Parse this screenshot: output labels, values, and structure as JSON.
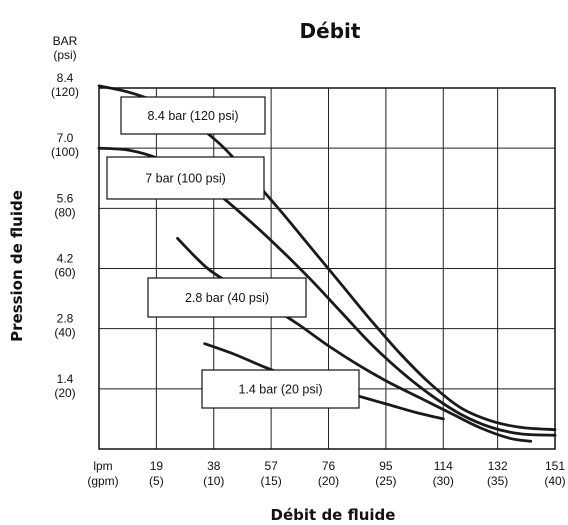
{
  "chart_data": {
    "type": "line",
    "title": "Débit",
    "xlabel": "Débit de fluide",
    "ylabel": "Pression de fluide",
    "y_unit_label": [
      "BAR",
      "(psi)"
    ],
    "x_unit_label": [
      "lpm",
      "(gpm)"
    ],
    "xlim": [
      0,
      151
    ],
    "ylim": [
      0,
      8.4
    ],
    "grid": true,
    "x_ticks": [
      {
        "value": 19,
        "label": "19",
        "sub": "(5)"
      },
      {
        "value": 38,
        "label": "38",
        "sub": "(10)"
      },
      {
        "value": 57,
        "label": "57",
        "sub": "(15)"
      },
      {
        "value": 76,
        "label": "76",
        "sub": "(20)"
      },
      {
        "value": 95,
        "label": "95",
        "sub": "(25)"
      },
      {
        "value": 114,
        "label": "114",
        "sub": "(30)"
      },
      {
        "value": 132,
        "label": "132",
        "sub": "(35)"
      },
      {
        "value": 151,
        "label": "151",
        "sub": "(40)"
      }
    ],
    "y_ticks": [
      {
        "value": 1.4,
        "label": "1.4",
        "sub": "(20)"
      },
      {
        "value": 2.8,
        "label": "2.8",
        "sub": "(40)"
      },
      {
        "value": 4.2,
        "label": "4.2",
        "sub": "(60)"
      },
      {
        "value": 5.6,
        "label": "5.6",
        "sub": "(80)"
      },
      {
        "value": 7.0,
        "label": "7.0",
        "sub": "(100)"
      },
      {
        "value": 8.4,
        "label": "8.4",
        "sub": "(120)"
      }
    ],
    "series": [
      {
        "name": "8.4 bar (120 psi)",
        "x": [
          0,
          10,
          20,
          30,
          40,
          50,
          60,
          70,
          80,
          90,
          100,
          110,
          120,
          130,
          140,
          151
        ],
        "y": [
          8.45,
          8.3,
          8.05,
          7.65,
          7.1,
          6.35,
          5.55,
          4.7,
          3.85,
          3.0,
          2.2,
          1.5,
          0.95,
          0.65,
          0.5,
          0.45
        ]
      },
      {
        "name": "7 bar (100 psi)",
        "x": [
          0,
          10,
          20,
          30,
          40,
          50,
          60,
          70,
          80,
          90,
          100,
          110,
          120,
          130,
          140,
          151
        ],
        "y": [
          7.0,
          6.95,
          6.75,
          6.4,
          5.9,
          5.3,
          4.65,
          3.95,
          3.2,
          2.45,
          1.8,
          1.25,
          0.8,
          0.5,
          0.35,
          0.32
        ]
      },
      {
        "name": "2.8 bar (40 psi)",
        "x": [
          26,
          36,
          46,
          56,
          66,
          76,
          86,
          96,
          106,
          116,
          126,
          136,
          143
        ],
        "y": [
          4.9,
          4.2,
          3.75,
          3.35,
          2.9,
          2.4,
          1.95,
          1.55,
          1.2,
          0.85,
          0.5,
          0.25,
          0.18
        ]
      },
      {
        "name": "1.4 bar (20 psi)",
        "x": [
          35,
          45,
          55,
          65,
          75,
          85,
          95,
          105,
          114
        ],
        "y": [
          2.45,
          2.2,
          1.9,
          1.65,
          1.45,
          1.25,
          1.05,
          0.85,
          0.7
        ]
      }
    ],
    "annotations": [
      {
        "text": "8.4 bar (120 psi)"
      },
      {
        "text": "7 bar (100 psi)"
      },
      {
        "text": "2.8 bar (40 psi)"
      },
      {
        "text": "1.4 bar (20 psi)"
      }
    ]
  }
}
